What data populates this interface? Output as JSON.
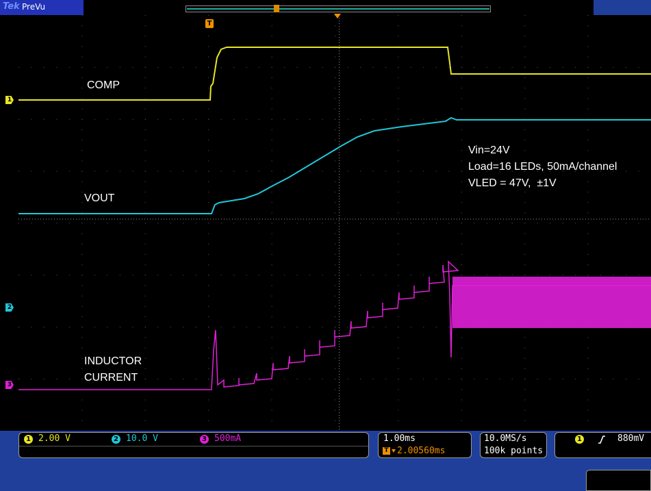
{
  "header": {
    "brand": "Tek",
    "state": "PreVu"
  },
  "colors": {
    "ch1": "#e8e624",
    "ch2": "#22c6d8",
    "ch3": "#e020d8",
    "trigger": "#f09000"
  },
  "channel_markers": [
    {
      "name": "1",
      "color": "#e8e624"
    },
    {
      "name": "2",
      "color": "#22c6d8"
    },
    {
      "name": "3",
      "color": "#e020d8"
    }
  ],
  "trigger_marker": "T",
  "waveform_labels": {
    "comp": "COMP",
    "vout": "VOUT",
    "inductor": "INDUCTOR\nCURRENT"
  },
  "annotation": {
    "line1": "Vin=24V",
    "line2": "Load=16 LEDs, 50mA/channel",
    "line3": "VLED = 47V,  ±1V"
  },
  "channels": [
    {
      "number": "1",
      "scale": "2.00 V",
      "color": "#e8e624"
    },
    {
      "number": "2",
      "scale": "10.0 V",
      "color": "#22c6d8"
    },
    {
      "number": "3",
      "scale": "500mA",
      "color": "#e020d8"
    }
  ],
  "timebase": {
    "scale": "1.00ms",
    "delay": "2.00560ms"
  },
  "acquisition": {
    "rate": "10.0MS/s",
    "record": "100k points"
  },
  "trigger": {
    "source": "1",
    "slope": "rising-edge-icon",
    "level": "880mV"
  }
}
